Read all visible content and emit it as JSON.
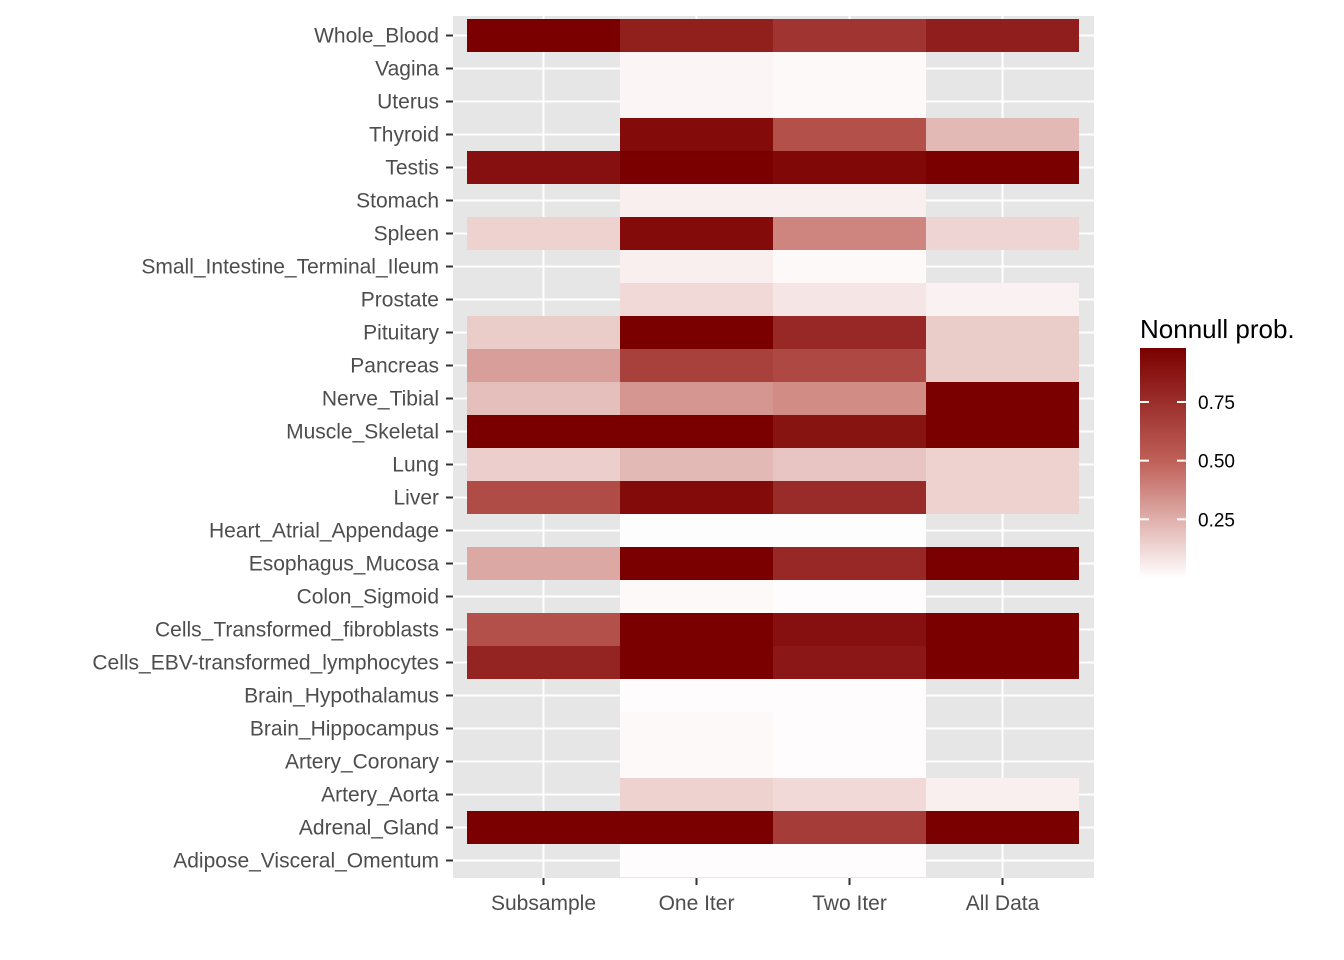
{
  "chart_data": {
    "type": "heatmap",
    "title": "",
    "xlabel": "",
    "ylabel": "",
    "x_categories": [
      "Subsample",
      "One Iter",
      "Two Iter",
      "All Data"
    ],
    "y_categories": [
      "Whole_Blood",
      "Vagina",
      "Uterus",
      "Thyroid",
      "Testis",
      "Stomach",
      "Spleen",
      "Small_Intestine_Terminal_Ileum",
      "Prostate",
      "Pituitary",
      "Pancreas",
      "Nerve_Tibial",
      "Muscle_Skeletal",
      "Lung",
      "Liver",
      "Heart_Atrial_Appendage",
      "Esophagus_Mucosa",
      "Colon_Sigmoid",
      "Cells_Transformed_fibroblasts",
      "Cells_EBV-transformed_lymphocytes",
      "Brain_Hypothalamus",
      "Brain_Hippocampus",
      "Artery_Coronary",
      "Artery_Aorta",
      "Adrenal_Gland",
      "Adipose_Visceral_Omentum"
    ],
    "values": [
      [
        0.98,
        0.82,
        0.72,
        0.83
      ],
      [
        null,
        0.03,
        0.02,
        null
      ],
      [
        null,
        0.03,
        0.02,
        null
      ],
      [
        null,
        0.92,
        0.58,
        0.22
      ],
      [
        0.9,
        0.98,
        0.94,
        0.98
      ],
      [
        null,
        0.05,
        0.05,
        null
      ],
      [
        0.14,
        0.92,
        0.38,
        0.13
      ],
      [
        null,
        0.05,
        0.02,
        null
      ],
      [
        null,
        0.12,
        0.08,
        0.04
      ],
      [
        0.16,
        0.98,
        0.78,
        0.16
      ],
      [
        0.3,
        0.66,
        0.62,
        0.16
      ],
      [
        0.2,
        0.33,
        0.36,
        0.98
      ],
      [
        0.98,
        0.98,
        0.88,
        0.98
      ],
      [
        0.15,
        0.22,
        0.18,
        0.14
      ],
      [
        0.6,
        0.92,
        0.76,
        0.14
      ],
      [
        null,
        0.005,
        0.005,
        null
      ],
      [
        0.27,
        0.98,
        0.78,
        0.98
      ],
      [
        null,
        0.02,
        0.01,
        null
      ],
      [
        0.58,
        0.98,
        0.9,
        0.98
      ],
      [
        0.8,
        0.98,
        0.86,
        0.98
      ],
      [
        null,
        0.01,
        0.01,
        null
      ],
      [
        null,
        0.02,
        0.01,
        null
      ],
      [
        null,
        0.02,
        0.01,
        null
      ],
      [
        null,
        0.14,
        0.12,
        0.05
      ],
      [
        0.98,
        0.98,
        0.68,
        0.98
      ],
      [
        null,
        0.01,
        0.01,
        null
      ]
    ],
    "color_scale": {
      "low": "#ffffff",
      "mid": "#c0625a",
      "high": "#7a0000",
      "domain": [
        0.0,
        0.98
      ]
    },
    "legend": {
      "title": "Nonnull prob.",
      "ticks": [
        0.25,
        0.5,
        0.75
      ],
      "tick_labels": [
        "0.25",
        "0.50",
        "0.75"
      ],
      "position": "right"
    },
    "panel_background": "#e6e6e6",
    "grid_color": "#ffffff",
    "grid": true
  }
}
